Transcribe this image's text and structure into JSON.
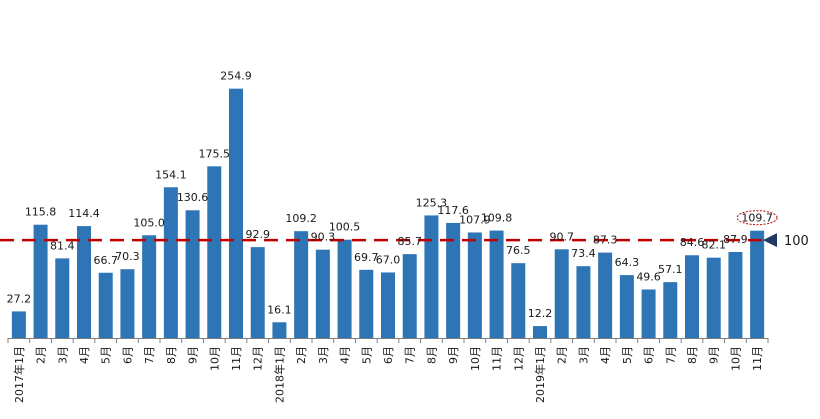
{
  "chart_data": {
    "type": "bar",
    "title": "",
    "xlabel": "",
    "ylabel": "",
    "ylim": [
      0,
      275
    ],
    "grid": false,
    "legend": "none",
    "bar_color": "#2e75b6",
    "reference_line": {
      "value": 100,
      "label": "100",
      "color": "#c00000",
      "style": "dashed"
    },
    "highlight_color": "#c00000",
    "highlight_index": 34,
    "categories": [
      "2017年1月",
      "2月",
      "3月",
      "4月",
      "5月",
      "6月",
      "7月",
      "8月",
      "9月",
      "10月",
      "11月",
      "12月",
      "2018年1月",
      "2月",
      "3月",
      "4月",
      "5月",
      "6月",
      "7月",
      "8月",
      "9月",
      "10月",
      "11月",
      "12月",
      "2019年1月",
      "2月",
      "3月",
      "4月",
      "5月",
      "6月",
      "7月",
      "8月",
      "9月",
      "10月",
      "11月"
    ],
    "values": [
      27.2,
      115.8,
      81.4,
      114.4,
      66.7,
      70.3,
      105.0,
      154.1,
      130.6,
      175.5,
      254.9,
      92.9,
      16.1,
      109.2,
      90.3,
      100.5,
      69.7,
      67.0,
      85.7,
      125.3,
      117.6,
      107.9,
      109.8,
      76.5,
      12.2,
      90.7,
      73.4,
      87.3,
      64.3,
      49.6,
      57.1,
      84.6,
      82.1,
      87.9,
      109.7
    ],
    "value_labels": [
      "27.2",
      "115.8",
      "81.4",
      "114.4",
      "66.7",
      "70.3",
      "105.0",
      "154.1",
      "130.6",
      "175.5",
      "254.9",
      "92.9",
      "16.1",
      "109.2",
      "90.3",
      "100.5",
      "69.7",
      "67.0",
      "85.7",
      "125.3",
      "117.6",
      "107.9",
      "109.8",
      "76.5",
      "12.2",
      "90.7",
      "73.4",
      "87.3",
      "64.3",
      "49.6",
      "57.1",
      "84.6",
      "82.1",
      "87.9",
      "109.7"
    ]
  }
}
